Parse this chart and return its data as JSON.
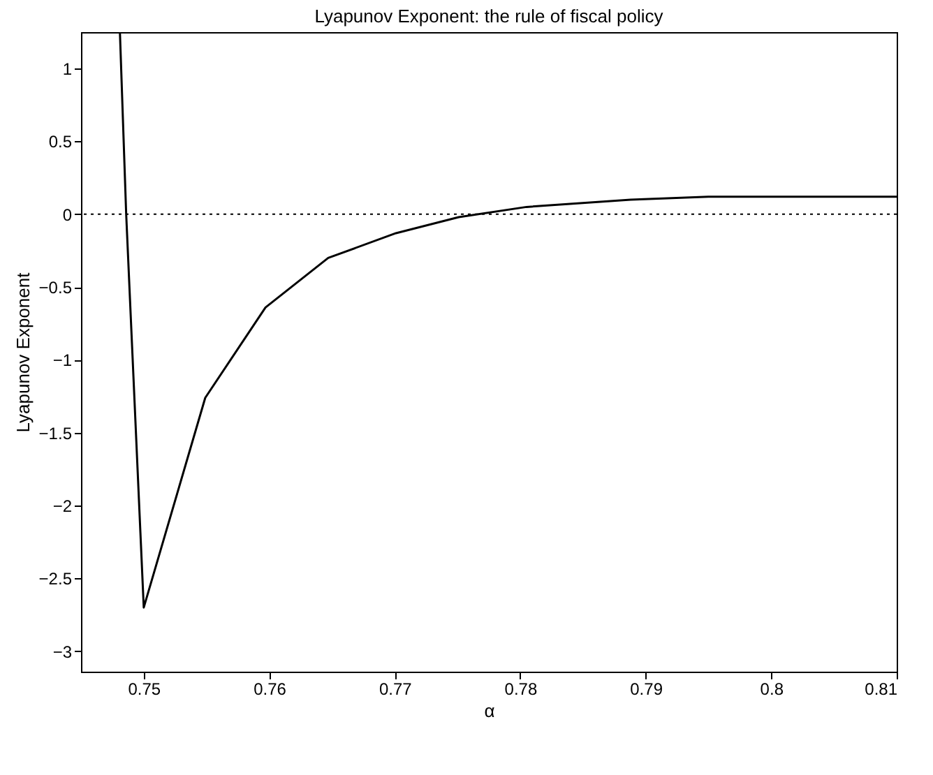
{
  "chart_data": {
    "type": "line",
    "title": "Lyapunov Exponent: the rule of fiscal policy",
    "xlabel": "α",
    "ylabel": "Lyapunov Exponent",
    "x": [
      0.7481,
      0.7486,
      0.75,
      0.7549,
      0.7597,
      0.7647,
      0.7701,
      0.7751,
      0.7805,
      0.7888,
      0.795,
      0.81
    ],
    "series": [
      {
        "color": "#000000",
        "values": [
          1.25,
          0,
          -2.7,
          -1.26,
          -0.64,
          -0.3,
          -0.13,
          -0.02,
          0.05,
          0.1,
          0.12,
          0.12
        ]
      }
    ],
    "xlim": [
      0.745,
      0.81
    ],
    "xticks": [
      0.75,
      0.76,
      0.77,
      0.78,
      0.79,
      0.8,
      0.81
    ],
    "ylim": [
      -3.14,
      1.25
    ],
    "yticks": [
      -3,
      -2.5,
      -2,
      -1.5,
      -1,
      -0.5,
      0,
      0.5,
      1
    ],
    "ref_lines": [
      {
        "axis": "y",
        "value": 0,
        "color": "#000000",
        "line_style": "dotted"
      }
    ],
    "grid": false,
    "marker": "none",
    "line_style": "solid"
  }
}
